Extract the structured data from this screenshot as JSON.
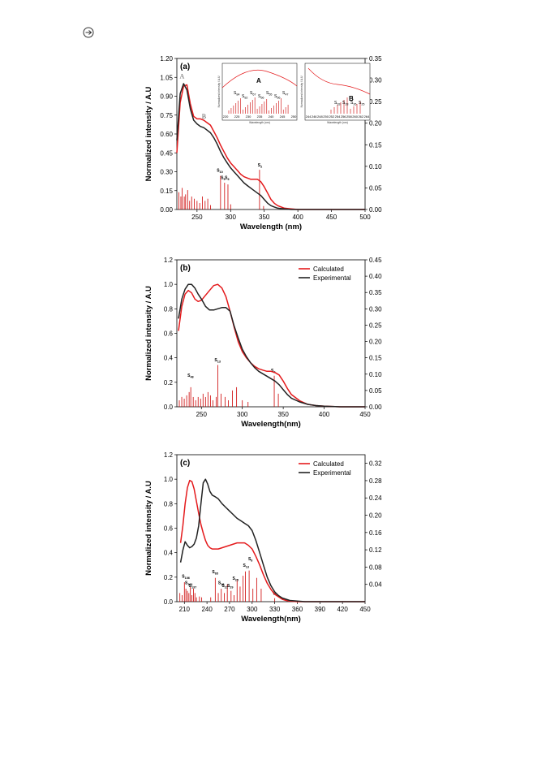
{
  "header": {
    "icon": "circled-arrow-icon"
  },
  "colors": {
    "calculated": "#e41a1c",
    "experimental": "#222222",
    "sticks": "#cc0000"
  },
  "chart_data": [
    {
      "type": "line",
      "panel_label": "(a)",
      "xlabel": "Wavelength (nm)",
      "ylabel": "Normalized intensity / A.U",
      "xlim": [
        220,
        500
      ],
      "ylim": [
        0,
        1.2
      ],
      "y2lim": [
        0,
        0.35
      ],
      "xticks": [
        250,
        300,
        350,
        400,
        450,
        500
      ],
      "yticks": [
        "0.00",
        "0.15",
        "0.30",
        "0.45",
        "0.60",
        "0.75",
        "0.90",
        "1.05",
        "1.20"
      ],
      "y2ticks": [
        "0.00",
        "0.05",
        "0.10",
        "0.15",
        "0.20",
        "0.25",
        "0.30",
        "0.35"
      ],
      "peak_labels": [
        {
          "text": "A",
          "x": 229,
          "y": 1.03
        },
        {
          "text": "B",
          "x": 262,
          "y": 0.71
        }
      ],
      "series": [
        {
          "color": "red",
          "x": [
            220,
            225,
            230,
            235,
            240,
            245,
            250,
            255,
            260,
            265,
            270,
            275,
            280,
            285,
            290,
            295,
            300,
            305,
            310,
            315,
            320,
            325,
            330,
            335,
            340,
            345,
            350,
            355,
            360,
            365,
            370,
            380,
            390,
            400,
            420,
            450,
            500
          ],
          "y": [
            0.45,
            0.85,
            0.98,
            0.99,
            0.84,
            0.74,
            0.72,
            0.72,
            0.71,
            0.69,
            0.67,
            0.62,
            0.57,
            0.51,
            0.46,
            0.41,
            0.37,
            0.34,
            0.31,
            0.28,
            0.26,
            0.25,
            0.24,
            0.24,
            0.24,
            0.22,
            0.18,
            0.13,
            0.08,
            0.05,
            0.03,
            0.01,
            0.005,
            0.0,
            0.0,
            0.0,
            0.0
          ]
        },
        {
          "color": "black",
          "x": [
            220,
            225,
            230,
            235,
            240,
            245,
            250,
            255,
            260,
            265,
            270,
            275,
            280,
            285,
            290,
            295,
            300,
            305,
            310,
            315,
            320,
            325,
            330,
            335,
            340,
            345,
            350,
            355,
            360,
            365,
            370,
            380,
            390,
            400,
            420,
            450,
            500
          ],
          "y": [
            0.55,
            0.92,
            1.0,
            0.95,
            0.8,
            0.71,
            0.68,
            0.66,
            0.65,
            0.63,
            0.61,
            0.57,
            0.52,
            0.46,
            0.41,
            0.37,
            0.33,
            0.3,
            0.27,
            0.24,
            0.21,
            0.19,
            0.17,
            0.15,
            0.13,
            0.11,
            0.08,
            0.05,
            0.03,
            0.02,
            0.01,
            0.005,
            0.0,
            0.0,
            0.0,
            0.0,
            0.0
          ]
        }
      ],
      "sticks": [
        {
          "x": 223,
          "h": 0.04
        },
        {
          "x": 226,
          "h": 0.03
        },
        {
          "x": 228,
          "h": 0.05
        },
        {
          "x": 231,
          "h": 0.03
        },
        {
          "x": 233,
          "h": 0.035
        },
        {
          "x": 236,
          "h": 0.045
        },
        {
          "x": 239,
          "h": 0.02
        },
        {
          "x": 242,
          "h": 0.03
        },
        {
          "x": 246,
          "h": 0.025
        },
        {
          "x": 250,
          "h": 0.02
        },
        {
          "x": 254,
          "h": 0.015
        },
        {
          "x": 258,
          "h": 0.03
        },
        {
          "x": 262,
          "h": 0.02
        },
        {
          "x": 266,
          "h": 0.025
        },
        {
          "x": 270,
          "h": 0.01
        },
        {
          "x": 285,
          "h": 0.078
        },
        {
          "x": 291,
          "h": 0.062
        },
        {
          "x": 296,
          "h": 0.058
        },
        {
          "x": 300,
          "h": 0.012
        },
        {
          "x": 343,
          "h": 0.092
        },
        {
          "x": 349,
          "h": 0.008
        }
      ],
      "stick_labels": [
        {
          "text": "S10",
          "x": 283,
          "y": 0.082
        },
        {
          "text": "S9",
          "x": 289,
          "y": 0.065
        },
        {
          "text": "S6",
          "x": 295,
          "y": 0.065
        },
        {
          "text": "S2",
          "x": 344,
          "y": 0.094
        }
      ],
      "insets": [
        {
          "title": "A",
          "ylabel": "Normalized intensity / A.U",
          "xlabel": "Wavelength (nm)",
          "xticks": [
            "220",
            "225",
            "230",
            "235",
            "240",
            "245",
            "250"
          ],
          "labels": [
            "S84",
            "S82",
            "S67",
            "S66",
            "S55",
            "S56",
            "S47"
          ]
        },
        {
          "title": "B",
          "ylabel": "Normalized intensity / A.U",
          "xlabel": "Wavelength (nm)",
          "xticks": [
            "244",
            "246",
            "248",
            "250",
            "252",
            "254",
            "256",
            "258",
            "260",
            "262",
            "264"
          ],
          "labels": [
            "S33",
            "S28",
            "S26",
            "S25"
          ]
        }
      ]
    },
    {
      "type": "line",
      "panel_label": "(b)",
      "xlabel": "Wavelength(nm)",
      "ylabel": "Normalized intensity / A.U",
      "xlim": [
        220,
        450
      ],
      "ylim": [
        0,
        1.2
      ],
      "y2lim": [
        0,
        0.45
      ],
      "xticks": [
        250,
        300,
        350,
        400,
        450
      ],
      "yticks": [
        "0.0",
        "0.2",
        "0.4",
        "0.6",
        "0.8",
        "1.0",
        "1.2"
      ],
      "y2ticks": [
        "0.00",
        "0.05",
        "0.10",
        "0.15",
        "0.20",
        "0.25",
        "0.30",
        "0.35",
        "0.40",
        "0.45"
      ],
      "legend": [
        "Calculated",
        "Experimental"
      ],
      "series": [
        {
          "name": "Calculated",
          "color": "red",
          "x": [
            222,
            226,
            230,
            234,
            238,
            242,
            246,
            250,
            255,
            260,
            265,
            270,
            275,
            280,
            285,
            290,
            295,
            300,
            305,
            310,
            315,
            320,
            325,
            330,
            335,
            340,
            345,
            350,
            355,
            360,
            370,
            380,
            390,
            400,
            420,
            450
          ],
          "y": [
            0.62,
            0.82,
            0.92,
            0.95,
            0.93,
            0.88,
            0.86,
            0.87,
            0.91,
            0.95,
            0.99,
            1.0,
            0.97,
            0.9,
            0.78,
            0.65,
            0.53,
            0.45,
            0.4,
            0.36,
            0.33,
            0.31,
            0.3,
            0.29,
            0.29,
            0.28,
            0.26,
            0.21,
            0.15,
            0.1,
            0.05,
            0.02,
            0.01,
            0.005,
            0.0,
            0.0
          ]
        },
        {
          "name": "Experimental",
          "color": "black",
          "x": [
            222,
            226,
            230,
            234,
            238,
            242,
            246,
            250,
            255,
            260,
            265,
            270,
            275,
            280,
            285,
            290,
            295,
            300,
            305,
            310,
            315,
            320,
            325,
            330,
            335,
            340,
            345,
            350,
            355,
            360,
            370,
            380,
            390,
            400,
            420,
            450
          ],
          "y": [
            0.72,
            0.88,
            0.96,
            1.0,
            1.0,
            0.97,
            0.92,
            0.88,
            0.82,
            0.79,
            0.79,
            0.8,
            0.81,
            0.81,
            0.78,
            0.66,
            0.56,
            0.47,
            0.41,
            0.36,
            0.32,
            0.29,
            0.27,
            0.25,
            0.23,
            0.21,
            0.18,
            0.14,
            0.1,
            0.07,
            0.04,
            0.02,
            0.01,
            0.005,
            0.0,
            0.0
          ]
        }
      ],
      "sticks": [
        {
          "x": 223,
          "h": 0.02
        },
        {
          "x": 226,
          "h": 0.03
        },
        {
          "x": 229,
          "h": 0.025
        },
        {
          "x": 232,
          "h": 0.035
        },
        {
          "x": 235,
          "h": 0.045
        },
        {
          "x": 237,
          "h": 0.06
        },
        {
          "x": 240,
          "h": 0.03
        },
        {
          "x": 243,
          "h": 0.02
        },
        {
          "x": 246,
          "h": 0.03
        },
        {
          "x": 249,
          "h": 0.025
        },
        {
          "x": 252,
          "h": 0.04
        },
        {
          "x": 255,
          "h": 0.03
        },
        {
          "x": 258,
          "h": 0.045
        },
        {
          "x": 261,
          "h": 0.035
        },
        {
          "x": 264,
          "h": 0.02
        },
        {
          "x": 268,
          "h": 0.03
        },
        {
          "x": 270,
          "h": 0.128
        },
        {
          "x": 274,
          "h": 0.04
        },
        {
          "x": 279,
          "h": 0.03
        },
        {
          "x": 283,
          "h": 0.02
        },
        {
          "x": 288,
          "h": 0.05
        },
        {
          "x": 293,
          "h": 0.06
        },
        {
          "x": 300,
          "h": 0.02
        },
        {
          "x": 307,
          "h": 0.015
        },
        {
          "x": 339,
          "h": 0.095
        },
        {
          "x": 344,
          "h": 0.04
        }
      ],
      "stick_labels": [
        {
          "text": "S48",
          "x": 236,
          "y": 0.085
        },
        {
          "text": "S13",
          "x": 269,
          "y": 0.132
        },
        {
          "text": "S2",
          "x": 338,
          "y": 0.1
        }
      ]
    },
    {
      "type": "line",
      "panel_label": "(c)",
      "xlabel": "Wavelength(nm)",
      "ylabel": "Normalized intensity / A.U",
      "xlim": [
        200,
        450
      ],
      "ylim": [
        0,
        1.2
      ],
      "y2lim": [
        0,
        0.34
      ],
      "xticks": [
        210,
        240,
        270,
        300,
        330,
        360,
        390,
        420,
        450
      ],
      "yticks": [
        "0.0",
        "0.2",
        "0.4",
        "0.6",
        "0.8",
        "1.0",
        "1.2"
      ],
      "y2ticks": [
        "0.04",
        "0.08",
        "0.12",
        "0.16",
        "0.20",
        "0.24",
        "0.28",
        "0.32"
      ],
      "legend": [
        "Calculated",
        "Experimental"
      ],
      "series": [
        {
          "name": "Calculated",
          "color": "red",
          "x": [
            205,
            208,
            211,
            214,
            217,
            220,
            223,
            226,
            229,
            232,
            235,
            238,
            241,
            244,
            247,
            250,
            255,
            260,
            265,
            270,
            275,
            280,
            285,
            290,
            295,
            300,
            305,
            310,
            315,
            320,
            325,
            330,
            335,
            340,
            345,
            350,
            360,
            370,
            380,
            390,
            400,
            420,
            450
          ],
          "y": [
            0.48,
            0.62,
            0.8,
            0.93,
            0.99,
            0.98,
            0.92,
            0.82,
            0.72,
            0.63,
            0.56,
            0.5,
            0.46,
            0.44,
            0.43,
            0.43,
            0.43,
            0.44,
            0.45,
            0.46,
            0.47,
            0.48,
            0.48,
            0.48,
            0.46,
            0.43,
            0.37,
            0.3,
            0.22,
            0.15,
            0.1,
            0.06,
            0.04,
            0.02,
            0.01,
            0.005,
            0.0,
            0.0,
            0.0,
            0.0,
            0.0,
            0.0,
            0.0
          ]
        },
        {
          "name": "Experimental",
          "color": "black",
          "x": [
            205,
            208,
            211,
            214,
            217,
            220,
            223,
            226,
            229,
            232,
            235,
            238,
            241,
            244,
            247,
            250,
            255,
            260,
            265,
            270,
            275,
            280,
            285,
            290,
            295,
            300,
            305,
            310,
            315,
            320,
            325,
            330,
            335,
            340,
            345,
            350,
            360,
            370,
            380,
            390,
            400,
            420,
            450
          ],
          "y": [
            0.32,
            0.42,
            0.49,
            0.46,
            0.44,
            0.45,
            0.47,
            0.52,
            0.62,
            0.8,
            0.97,
            1.0,
            0.96,
            0.9,
            0.87,
            0.86,
            0.84,
            0.8,
            0.77,
            0.74,
            0.71,
            0.68,
            0.66,
            0.64,
            0.62,
            0.58,
            0.5,
            0.4,
            0.3,
            0.2,
            0.13,
            0.08,
            0.05,
            0.03,
            0.02,
            0.01,
            0.005,
            0.0,
            0.0,
            0.0,
            0.0,
            0.0,
            0.0
          ]
        }
      ],
      "sticks": [
        {
          "x": 204,
          "h": 0.02
        },
        {
          "x": 207,
          "h": 0.015
        },
        {
          "x": 210,
          "h": 0.045
        },
        {
          "x": 212,
          "h": 0.03
        },
        {
          "x": 214,
          "h": 0.025
        },
        {
          "x": 216,
          "h": 0.02
        },
        {
          "x": 218,
          "h": 0.035
        },
        {
          "x": 220,
          "h": 0.015
        },
        {
          "x": 222,
          "h": 0.03
        },
        {
          "x": 224,
          "h": 0.02
        },
        {
          "x": 226,
          "h": 0.01
        },
        {
          "x": 230,
          "h": 0.012
        },
        {
          "x": 233,
          "h": 0.01
        },
        {
          "x": 245,
          "h": 0.01
        },
        {
          "x": 251,
          "h": 0.055
        },
        {
          "x": 255,
          "h": 0.02
        },
        {
          "x": 259,
          "h": 0.03
        },
        {
          "x": 263,
          "h": 0.02
        },
        {
          "x": 267,
          "h": 0.04
        },
        {
          "x": 272,
          "h": 0.025
        },
        {
          "x": 276,
          "h": 0.015
        },
        {
          "x": 280,
          "h": 0.05
        },
        {
          "x": 284,
          "h": 0.035
        },
        {
          "x": 288,
          "h": 0.06
        },
        {
          "x": 291,
          "h": 0.07
        },
        {
          "x": 296,
          "h": 0.072
        },
        {
          "x": 301,
          "h": 0.03
        },
        {
          "x": 306,
          "h": 0.055
        },
        {
          "x": 312,
          "h": 0.03
        },
        {
          "x": 330,
          "h": 0.008
        }
      ],
      "stick_labels": [
        {
          "text": "S106",
          "x": 210,
          "y": 0.05
        },
        {
          "text": "S101",
          "x": 214,
          "y": 0.035
        },
        {
          "text": "S137",
          "x": 219,
          "y": 0.028
        },
        {
          "text": "S65",
          "x": 250,
          "y": 0.06
        },
        {
          "text": "S19",
          "x": 258,
          "y": 0.035
        },
        {
          "text": "S21",
          "x": 263,
          "y": 0.028
        },
        {
          "text": "S29",
          "x": 270,
          "y": 0.028
        },
        {
          "text": "S25",
          "x": 277,
          "y": 0.045
        },
        {
          "text": "S13",
          "x": 291,
          "y": 0.075
        },
        {
          "text": "S6",
          "x": 298,
          "y": 0.09
        },
        {
          "text": "S1",
          "x": 331,
          "y": 0.01
        }
      ]
    }
  ]
}
